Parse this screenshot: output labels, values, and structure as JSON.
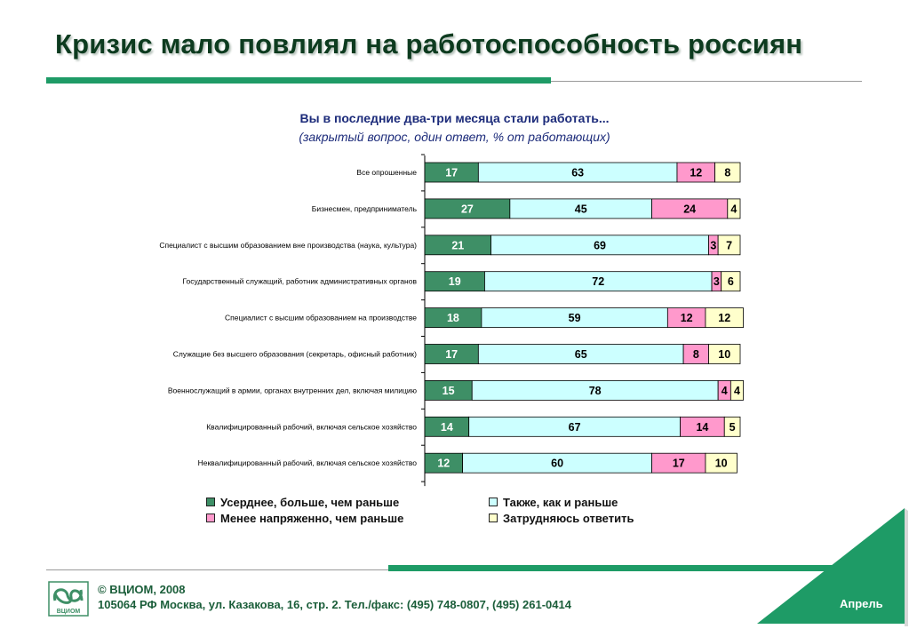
{
  "page": {
    "title": "Кризис мало повлиял на работоспособность россиян",
    "question": "Вы в последние два-три месяца стали работать...",
    "question_note": "(закрытый вопрос, один ответ, % от работающих)"
  },
  "colors": {
    "accent": "#1e9b66",
    "title": "#0d3b1f",
    "question": "#1c2b7a"
  },
  "chart_data": {
    "type": "bar",
    "orientation": "horizontal",
    "stacked": true,
    "unit": "%",
    "categories": [
      "Все опрошенные",
      "Бизнесмен, предприниматель",
      "Специалист с высшим образованием вне производства (наука, культура)",
      "Государственный служащий, работник административных органов",
      "Специалист с высшим образованием на производстве",
      "Служащие без высшего образования (секретарь, офисный работник)",
      "Военнослужащий в армии, органах внутренних дел, включая милицию",
      "Квалифицированный рабочий, включая сельское хозяйство",
      "Неквалифицированный рабочий, включая сельское хозяйство"
    ],
    "series": [
      {
        "name": "Усерднее, больше, чем раньше",
        "color": "#3e8f66",
        "values": [
          17,
          27,
          21,
          19,
          18,
          17,
          15,
          14,
          12
        ]
      },
      {
        "name": "Также, как и раньше",
        "color": "#ccffff",
        "values": [
          63,
          45,
          69,
          72,
          59,
          65,
          78,
          67,
          60
        ]
      },
      {
        "name": "Менее напряженно, чем раньше",
        "color": "#ff99cc",
        "values": [
          12,
          24,
          3,
          3,
          12,
          8,
          4,
          14,
          17
        ]
      },
      {
        "name": "Затрудняюсь ответить",
        "color": "#ffffcc",
        "values": [
          8,
          4,
          7,
          6,
          12,
          10,
          4,
          5,
          10
        ]
      }
    ],
    "xlim": [
      0,
      100
    ],
    "legend_position": "bottom"
  },
  "footer": {
    "copyright": "© ВЦИОМ, 2008",
    "address": "105064 РФ Москва, ул. Казакова, 16, стр. 2.  Тел./факс: (495) 748-0807, (495) 261-0414",
    "month": "Апрель",
    "logo_text": "ВЦИОМ"
  }
}
